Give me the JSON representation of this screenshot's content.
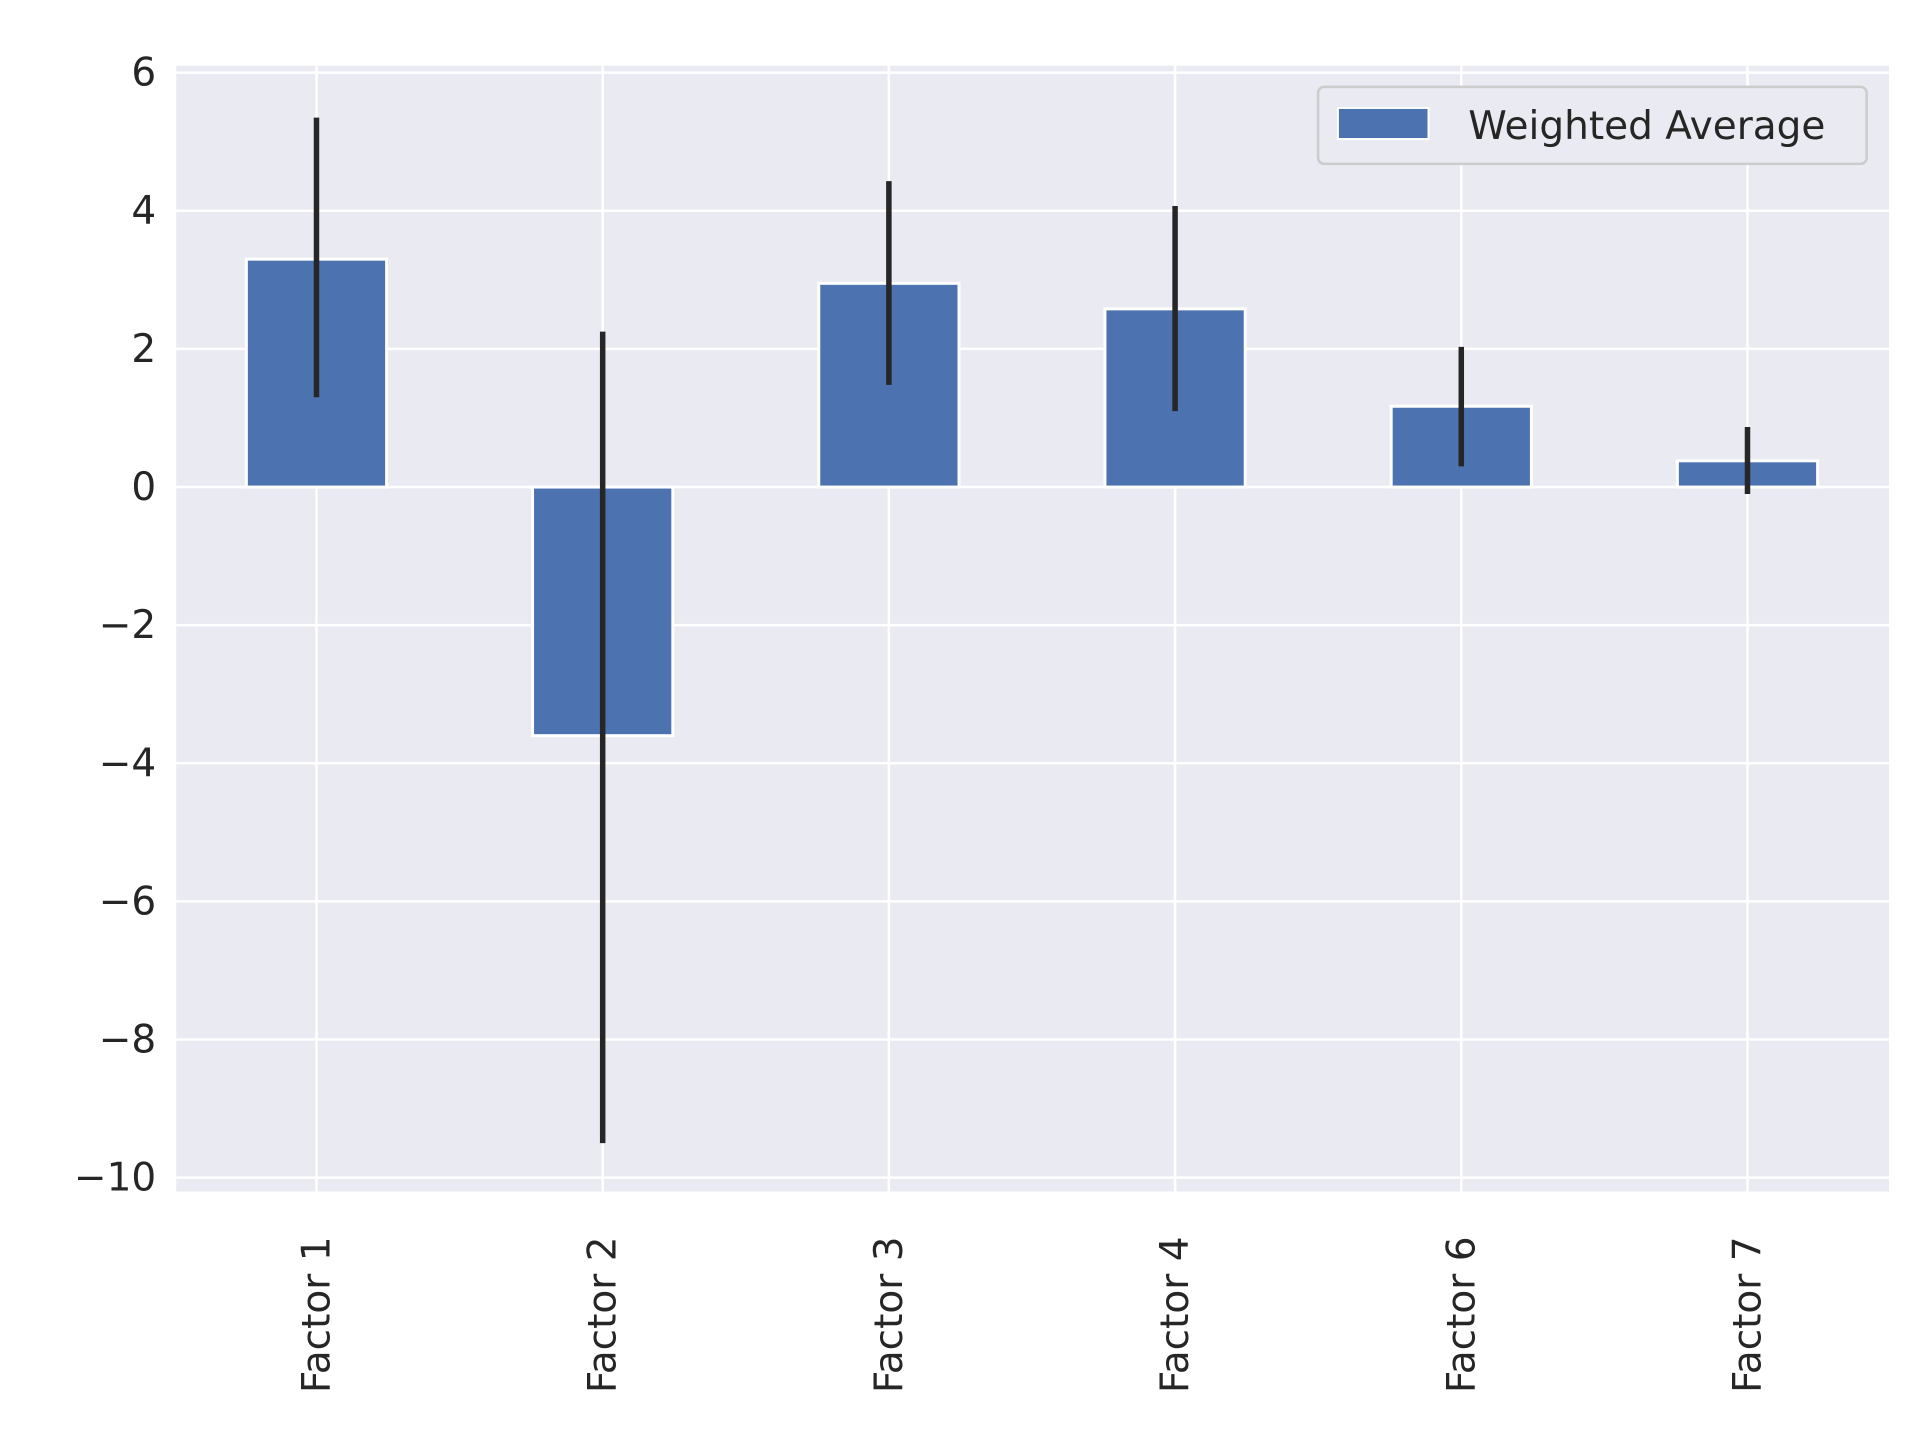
{
  "chart_data": {
    "type": "bar",
    "categories": [
      "Factor 1",
      "Factor 2",
      "Factor 3",
      "Factor 4",
      "Factor 6",
      "Factor 7"
    ],
    "series": [
      {
        "name": "Weighted Average",
        "values": [
          3.3,
          -3.6,
          2.95,
          2.58,
          1.17,
          0.38
        ],
        "error": [
          [
            1.3,
            5.35
          ],
          [
            -9.5,
            2.25
          ],
          [
            1.48,
            4.43
          ],
          [
            1.1,
            4.07
          ],
          [
            0.3,
            2.03
          ],
          [
            -0.1,
            0.87
          ]
        ]
      }
    ],
    "title": "",
    "xlabel": "",
    "ylabel": "",
    "ylim": [
      -10.2,
      6.1
    ],
    "yticks": [
      "6",
      "4",
      "2",
      "0",
      "−2",
      "−4",
      "−6",
      "−8",
      "−10"
    ],
    "grid": true,
    "legend_position": "top-right",
    "colors": {
      "bar": "#4c72b0",
      "background": "#eaeaf2",
      "grid": "#ffffff",
      "error_bar": "#262626",
      "text": "#262626"
    }
  }
}
